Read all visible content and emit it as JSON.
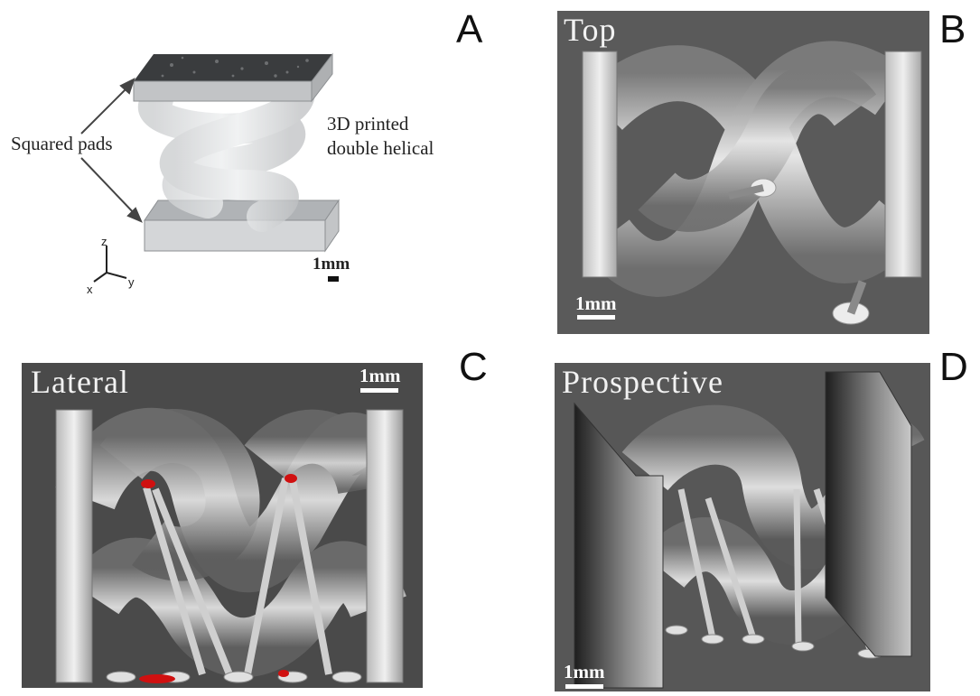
{
  "panels": {
    "a": {
      "letter": "A",
      "label_pads": "Squared pads",
      "label_helix_line1": "3D printed",
      "label_helix_line2": "double helical",
      "scale_label": "1mm",
      "axes": {
        "z": "z",
        "y": "y",
        "x": "x"
      }
    },
    "b": {
      "letter": "B",
      "title": "Top",
      "scale_label": "1mm"
    },
    "c": {
      "letter": "C",
      "title": "Lateral",
      "scale_label": "1mm"
    },
    "d": {
      "letter": "D",
      "title": "Prospective",
      "scale_label": "1mm"
    }
  },
  "colors": {
    "render_background": "#585858",
    "render_background_dark": "#3e3e3e",
    "support_contact": "#d01010"
  }
}
